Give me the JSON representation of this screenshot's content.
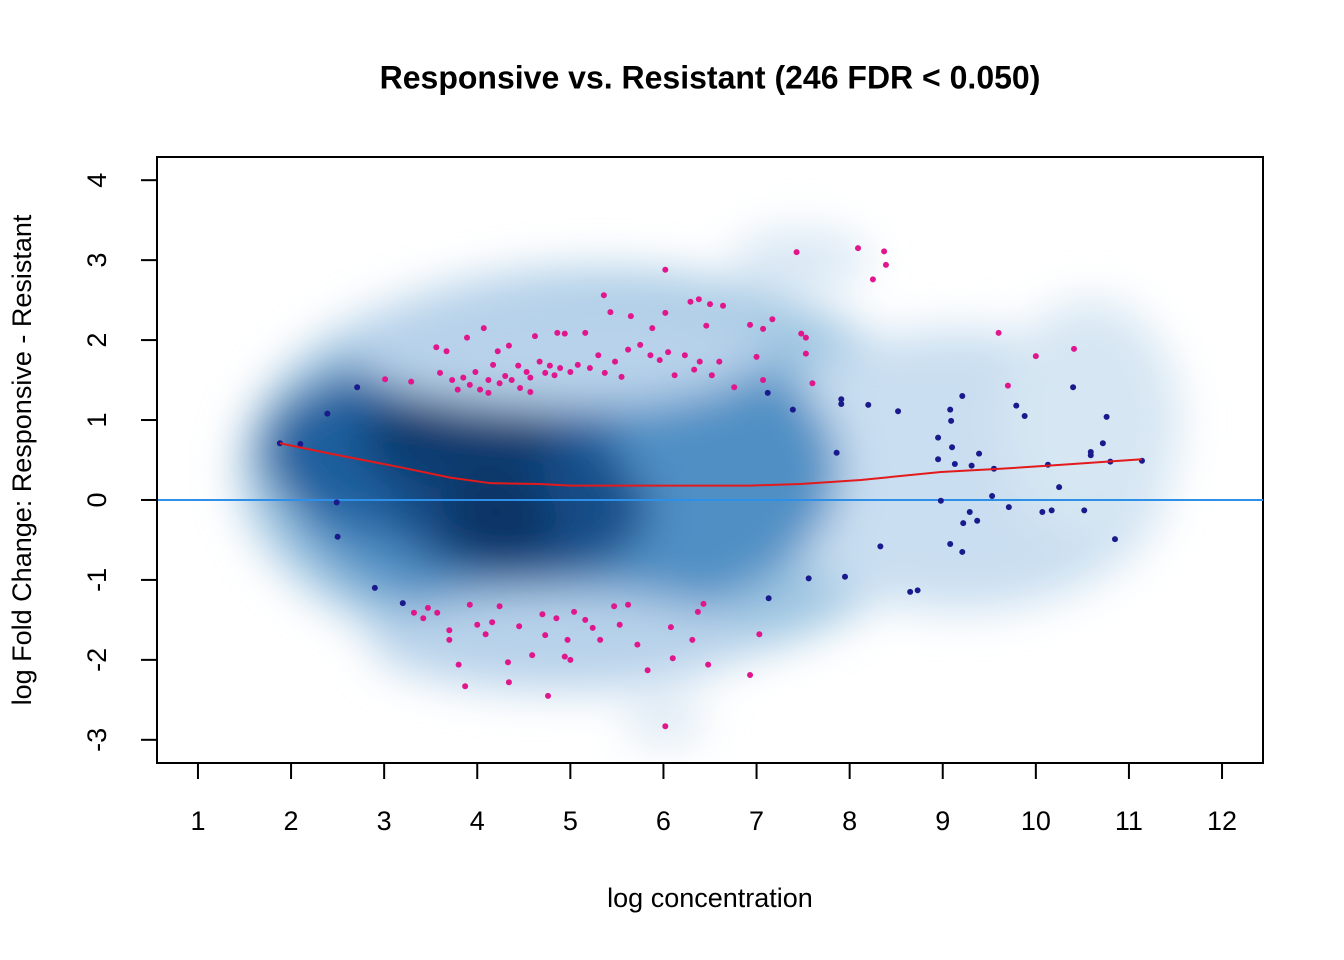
{
  "chart_data": {
    "type": "scatter",
    "title": "Responsive vs. Resistant (246 FDR < 0.050)",
    "x_label": "log concentration",
    "y_label": "log Fold Change: Responsive - Resistant",
    "xlim": [
      0.56,
      12.44
    ],
    "ylim": [
      -3.29,
      4.29
    ],
    "xticks": [
      1,
      2,
      3,
      4,
      5,
      6,
      7,
      8,
      9,
      10,
      11,
      12
    ],
    "yticks": [
      -3,
      -2,
      -1,
      0,
      1,
      2,
      3,
      4
    ],
    "reference_line": {
      "value": 0,
      "color": "#2e8fe8"
    },
    "series": [
      {
        "color": "#1a1a8c",
        "mode": "points",
        "x": [
          1.88,
          2.1,
          2.39,
          2.49,
          2.5,
          2.71,
          2.9,
          3.2,
          7.12,
          7.39,
          7.13,
          7.56,
          7.91,
          7.91,
          7.86,
          7.95,
          8.2,
          8.33,
          8.52,
          8.65,
          8.73,
          8.95,
          8.95,
          8.98,
          9.08,
          9.09,
          9.1,
          9.08,
          9.13,
          9.21,
          9.21,
          9.22,
          9.29,
          9.31,
          9.39,
          9.37,
          9.55,
          9.53,
          9.71,
          9.79,
          9.88,
          10.07,
          10.13,
          10.17,
          10.25,
          10.4,
          10.52,
          10.59,
          10.59,
          10.72,
          10.76,
          10.8,
          10.85,
          11.14
        ],
        "y": [
          0.71,
          0.7,
          1.08,
          -0.03,
          -0.46,
          1.41,
          -1.1,
          -1.29,
          1.34,
          1.13,
          -1.23,
          -0.98,
          1.26,
          1.2,
          0.59,
          -0.96,
          1.19,
          -0.58,
          1.11,
          -1.15,
          -1.13,
          0.78,
          0.51,
          -0.01,
          1.13,
          0.99,
          0.66,
          -0.55,
          0.45,
          1.3,
          -0.65,
          -0.29,
          -0.15,
          0.43,
          0.58,
          -0.26,
          0.39,
          0.05,
          -0.09,
          1.18,
          1.05,
          -0.15,
          0.44,
          -0.13,
          0.16,
          1.41,
          -0.13,
          0.6,
          0.56,
          0.71,
          1.04,
          0.48,
          -0.49,
          0.49
        ]
      },
      {
        "color": "#e0168c",
        "mode": "points",
        "x": [
          3.01,
          3.29,
          3.56,
          3.67,
          3.89,
          4.07,
          4.22,
          4.34,
          4.44,
          4.62,
          4.86,
          4.94,
          5.16,
          5.36,
          5.43,
          5.65,
          5.88,
          6.02,
          6.02,
          6.29,
          6.38,
          6.46,
          6.5,
          6.64,
          6.93,
          7.07,
          7.17,
          7.43,
          7.48,
          7.53,
          7.53,
          7.6,
          8.09,
          8.37,
          8.25,
          8.39,
          9.6,
          10.0,
          10.41,
          9.7,
          6.76,
          7.07,
          7.0,
          3.6,
          3.73,
          3.79,
          3.85,
          3.92,
          3.98,
          4.03,
          4.12,
          4.17,
          4.24,
          4.3,
          4.37,
          4.46,
          4.53,
          4.57,
          4.67,
          4.73,
          4.78,
          4.83,
          4.89,
          5.0,
          5.08,
          5.21,
          5.3,
          5.37,
          5.48,
          5.55,
          5.62,
          5.75,
          5.86,
          5.96,
          6.05,
          6.12,
          6.23,
          6.33,
          6.39,
          6.52,
          6.6,
          4.12,
          4.57,
          3.32,
          3.42,
          3.47,
          3.57,
          3.7,
          3.8,
          3.87,
          3.92,
          4.0,
          4.09,
          4.16,
          4.24,
          4.33,
          4.34,
          4.45,
          4.59,
          4.7,
          4.76,
          4.73,
          4.85,
          4.94,
          4.97,
          5.04,
          5.16,
          5.24,
          5.32,
          5.47,
          5.53,
          5.72,
          5.83,
          6.02,
          6.08,
          6.1,
          6.31,
          6.37,
          6.48,
          6.93,
          7.03,
          6.43,
          5.62,
          5.0,
          3.7
        ],
        "y": [
          1.51,
          1.48,
          1.91,
          1.86,
          2.03,
          2.15,
          1.86,
          1.93,
          1.68,
          2.05,
          2.09,
          2.08,
          2.09,
          2.56,
          2.35,
          2.3,
          2.15,
          2.88,
          2.34,
          2.48,
          2.51,
          2.18,
          2.45,
          2.43,
          2.19,
          2.14,
          2.26,
          3.1,
          2.08,
          2.03,
          1.83,
          1.46,
          3.15,
          3.11,
          2.76,
          2.94,
          2.09,
          1.8,
          1.89,
          1.43,
          1.41,
          1.5,
          1.79,
          1.59,
          1.5,
          1.38,
          1.53,
          1.44,
          1.6,
          1.38,
          1.5,
          1.69,
          1.46,
          1.55,
          1.5,
          1.4,
          1.6,
          1.53,
          1.73,
          1.59,
          1.68,
          1.56,
          1.65,
          1.6,
          1.69,
          1.65,
          1.81,
          1.59,
          1.73,
          1.54,
          1.88,
          1.94,
          1.81,
          1.75,
          1.85,
          1.56,
          1.81,
          1.63,
          1.73,
          1.56,
          1.73,
          1.34,
          1.35,
          -1.41,
          -1.48,
          -1.35,
          -1.41,
          -1.63,
          -2.06,
          -2.33,
          -1.31,
          -1.56,
          -1.68,
          -1.53,
          -1.33,
          -2.03,
          -2.28,
          -1.58,
          -1.94,
          -1.43,
          -2.45,
          -1.69,
          -1.48,
          -1.96,
          -1.75,
          -1.4,
          -1.5,
          -1.6,
          -1.75,
          -1.33,
          -1.56,
          -1.81,
          -2.13,
          -2.83,
          -1.59,
          -1.98,
          -1.75,
          -1.4,
          -2.06,
          -2.19,
          -1.68,
          -1.3,
          -1.31,
          -2.0,
          -1.75
        ]
      },
      {
        "color": "#e31a1c",
        "mode": "line",
        "x": [
          1.88,
          2.42,
          3.17,
          3.71,
          4.14,
          4.67,
          5.0,
          5.53,
          6.18,
          6.93,
          7.47,
          8.12,
          8.98,
          9.62,
          10.28,
          11.14
        ],
        "y": [
          0.71,
          0.58,
          0.41,
          0.28,
          0.21,
          0.2,
          0.18,
          0.18,
          0.18,
          0.18,
          0.2,
          0.25,
          0.35,
          0.39,
          0.44,
          0.51
        ]
      }
    ]
  }
}
